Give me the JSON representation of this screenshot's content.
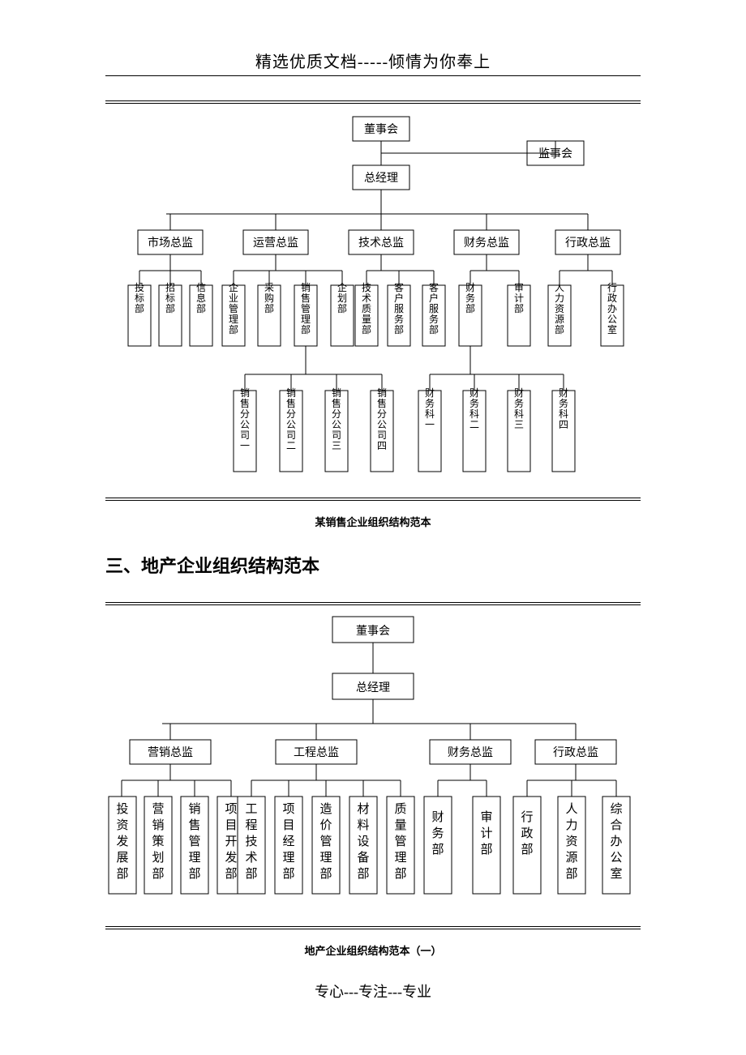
{
  "header": "精选优质文档-----倾情为你奉上",
  "footer": "专心---专注---专业",
  "chart1": {
    "type": "tree",
    "caption": "某销售企业组织结构范本",
    "background_color": "#ffffff",
    "line_color": "#000000",
    "box_border": "#000000",
    "box_fill": "#ffffff",
    "font_size_h": 14,
    "font_size_v": 13,
    "nodes": {
      "top1": "董事会",
      "top_side": "监事会",
      "top2": "总经理",
      "directors": [
        "市场总监",
        "运营总监",
        "技术总监",
        "财务总监",
        "行政总监"
      ],
      "depts": [
        "投标部",
        "招标部",
        "信息部",
        "企业管理部",
        "采购部",
        "销售管理部",
        "企划部",
        "技术质量部",
        "客户服务部",
        "财务部",
        "审计部",
        "人力资源部",
        "行政办公室"
      ],
      "sub_sales": [
        "销售分公司一",
        "销售分公司二",
        "销售分公司三",
        "销售分公司四"
      ],
      "sub_fin": [
        "财务科一",
        "财务科二",
        "财务科三",
        "财务科四"
      ]
    }
  },
  "section_title": "三、地产企业组织结构范本",
  "chart2": {
    "type": "tree",
    "caption": "地产企业组织结构范本（一）",
    "background_color": "#ffffff",
    "line_color": "#000000",
    "box_border": "#000000",
    "box_fill": "#ffffff",
    "font_size": 14,
    "nodes": {
      "top1": "董事会",
      "top2": "总经理",
      "directors": [
        "营销总监",
        "工程总监",
        "财务总监",
        "行政总监"
      ],
      "depts_marketing": [
        "投资发展部",
        "营销策划部",
        "销售管理部",
        "项目开发部"
      ],
      "depts_eng": [
        "工程技术部",
        "项目经理部",
        "造价管理部",
        "材料设备部",
        "质量管理部"
      ],
      "depts_fin": [
        "财务部",
        "审计部"
      ],
      "depts_admin": [
        "行政部",
        "人力资源部",
        "综合办公室"
      ]
    }
  }
}
